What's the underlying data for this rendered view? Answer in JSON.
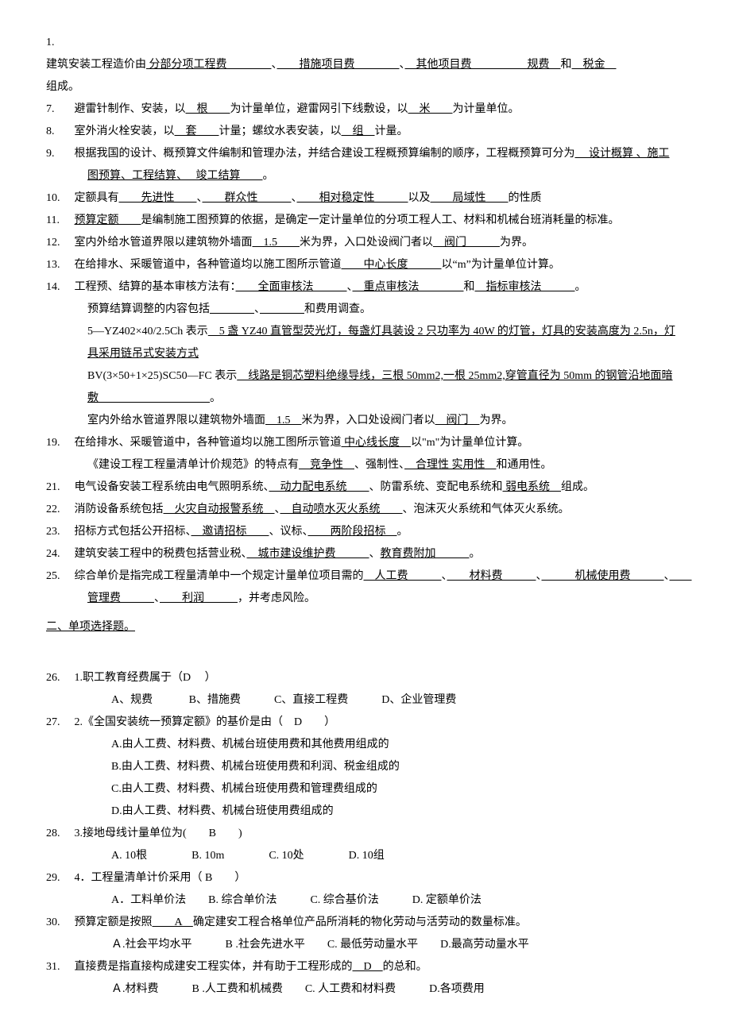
{
  "fill": {
    "q1_num": "1.",
    "q1_p1": "建筑安装工程造价由",
    "q1_u1": " 分部分项工程费　　　　",
    "q1_s1": "、",
    "q1_u2": "　　措施项目费　　　　",
    "q1_s2": "、",
    "q1_u3": "　其他项目费　　　　",
    "q1_u4": "　规费　",
    "q1_s3": "和",
    "q1_u5": "　税金　",
    "q1_p2": "组成。",
    "q7_num": "7.",
    "q7_p1": "避雷针制作、安装，以",
    "q7_u1": "　根　　",
    "q7_p2": "为计量单位，避雷网引下线敷设，以",
    "q7_u2": "　米　　",
    "q7_p3": "为计量单位。",
    "q8_num": "8.",
    "q8_p1": "室外消火栓安装，以",
    "q8_u1": "　套　　",
    "q8_p2": "计量；螺纹水表安装，以",
    "q8_u2": "　组　",
    "q8_p3": "计量。",
    "q9_num": "9.",
    "q9_p1": "根据我国的设计、概预算文件编制和管理办法，并结合建设工程概预算编制的顺序，工程概预算可分为",
    "q9_u1": "　 设计概算 、施工",
    "q9_u2": "图预算、工程结算、　 竣工结算　　",
    "q9_p2": "。",
    "q10_num": "10.",
    "q10_p1": "定额具有",
    "q10_u1": "　　先进性　　",
    "q10_s1": "、",
    "q10_u2": "　　群众性　　　",
    "q10_s2": "、",
    "q10_u3": "　　相对稳定性　　　",
    "q10_p2": "以及",
    "q10_u4": "　　局域性　　",
    "q10_p3": "的性质",
    "q11_num": "11.",
    "q11_u1": "预算定额　　",
    "q11_p1": "是编制施工图预算的依据，是确定一定计量单位的分项工程人工、材料和机械台班消耗量的标准。",
    "q12_num": "12.",
    "q12_p1": "室内外给水管道界限以建筑物外墙面",
    "q12_u1": "　1.5　　",
    "q12_p2": "米为界，入口处设阀门者以",
    "q12_u2": "　阀门　　　",
    "q12_p3": "为界。",
    "q13_num": "13.",
    "q13_p1": "在给排水、采暖管道中，各种管道均以施工图所示管道",
    "q13_u1": "　　中心长度　　　",
    "q13_p2": "以“m”为计量单位计算。",
    "q14_num": "14.",
    "q14_p1": "工程预、结算的基本审核方法有：",
    "q14_u1": "　　全面审核法　　　",
    "q14_s1": "、",
    "q14_u2": "　重点审核法　　　　",
    "q14_p2": "和",
    "q14_u3": "　指标审核法　　　",
    "q14_p3": "。",
    "q14b_p1": "预算结算调整的内容包括",
    "q14b_u1": "　　　　",
    "q14b_s1": "、",
    "q14b_u2": "　　　　",
    "q14b_p2": "和费用调查。",
    "q14c_p1": "5—YZ402×40/2.5Ch 表示",
    "q14c_u1": "　5 盏 YZ40 直管型荧光灯，每盏灯具装设 2 只功率为 40W 的灯管，灯具的安装高度为 2.5n，灯",
    "q14c_u2": "具采用链吊式安装方式",
    "q14d_p1": "BV(3×50+1×25)SC50—FC 表示",
    "q14d_u1": "　线路是铜芯塑料绝缘导线，三根 50mm2,一根 25mm2,穿管直径为 50mm 的钢管沿地面暗",
    "q14d_u2": "敷　　　　　　　　　　",
    "q14d_p2": "。",
    "q14e_p1": "室内外给水管道界限以建筑物外墙面",
    "q14e_u1": "　1.5　",
    "q14e_p2": "米为界，入口处设阀门者以",
    "q14e_u2": "　阀门　",
    "q14e_p3": "为界。",
    "q19_num": "19.",
    "q19_p1": "在给排水、采暖管道中，各种管道均以施工图所示管道",
    "q19_u1": " 中心线长度　",
    "q19_p2": "以\"m\"为计量单位计算。",
    "q19b_p1": "《建设工程工程量清单计价规范》的特点有",
    "q19b_u1": "　竞争性　",
    "q19b_p2": "、强制性、",
    "q19b_u2": "　合理性 实用性　",
    "q19b_p3": "和通用性。",
    "q21_num": "21.",
    "q21_p1": "电气设备安装工程系统由电气照明系统、",
    "q21_u1": "　动力配电系统　　",
    "q21_p2": "、防雷系统、变配电系统和",
    "q21_u2": " 弱电系统　",
    "q21_p3": "组成。",
    "q22_num": "22.",
    "q22_p1": "消防设备系统包括",
    "q22_u1": "　火灾自动报警系统　",
    "q22_s1": "、",
    "q22_u2": "　自动喷水灭火系统　　",
    "q22_p2": "、泡沫灭火系统和气体灭火系统。",
    "q23_num": "23.",
    "q23_p1": "招标方式包括公开招标、",
    "q23_u1": "　邀请招标　　",
    "q23_p2": "、议标、",
    "q23_u2": "　　两阶段招标　",
    "q23_p3": "。",
    "q24_num": "24.",
    "q24_p1": "建筑安装工程中的税费包括营业税、",
    "q24_u1": "　城市建设维护费　　　",
    "q24_s1": "、",
    "q24_u2": "教育费附加　　　",
    "q24_p2": "。",
    "q25_num": "25.",
    "q25_p1": "综合单价是指完成工程量清单中一个规定计量单位项目需的",
    "q25_u1": "　人工费　　　",
    "q25_s1": "、",
    "q25_u2": "　　材料费　　　",
    "q25_s2": "、",
    "q25_u3": "　　　机械使用费　　　",
    "q25_s3": "、",
    "q25_u4": "　　",
    "q25_u5": "管理费　　　",
    "q25_s4": "、",
    "q25_u6": "　　利润　　　",
    "q25_p2": "，并考虑风险。"
  },
  "section2_title": "二、单项选择题。",
  "mc": {
    "q26_num": "26.",
    "q26_stem": "1.职工教育经费属于（D　 ）",
    "q26_opts": "A、规费　　 　B、措施费　　　C、直接工程费　　　D、企业管理费",
    "q27_num": "27.",
    "q27_stem": "2.《全国安装统一预算定额》的基价是由（　D　　）",
    "q27_a": "A.由人工费、材料费、机械台班使用费和其他费用组成的",
    "q27_b": "B.由人工费、材料费、机械台班使用费和利润、税金组成的",
    "q27_c": "C.由人工费、材料费、机械台班使用费和管理费组成的",
    "q27_d": "D.由人工费、材料费、机械台班使用费组成的",
    "q28_num": "28.",
    "q28_stem": "3.接地母线计量单位为(　　B　　)",
    "q28_opts": "A. 10根　　　　B. 10m　　　　C. 10处　　　　D. 10组",
    "q29_num": "29.",
    "q29_stem": "4．工程量清单计价采用（ B　　）",
    "q29_opts": "A．工料单价法　　B. 综合单价法　　　C. 综合基价法　　　D. 定额单价法",
    "q30_num": "30.",
    "q30_stem_p1": "预算定额是按照",
    "q30_stem_u1": "　　A　",
    "q30_stem_p2": "确定建安工程合格单位产品所消耗的物化劳动与活劳动的数量标准。",
    "q30_opts": "Ａ.社会平均水平　　　B .社会先进水平　　C. 最低劳动量水平　　D.最高劳动量水平",
    "q31_num": "31.",
    "q31_stem_p1": "直接费是指直接构成建安工程实体，并有助于工程形成的",
    "q31_stem_u1": "　D　",
    "q31_stem_p2": "的总和。",
    "q31_opts": "Ａ.材料费　　　B .人工费和机械费　　C. 人工费和材料费　　　D.各项费用"
  }
}
